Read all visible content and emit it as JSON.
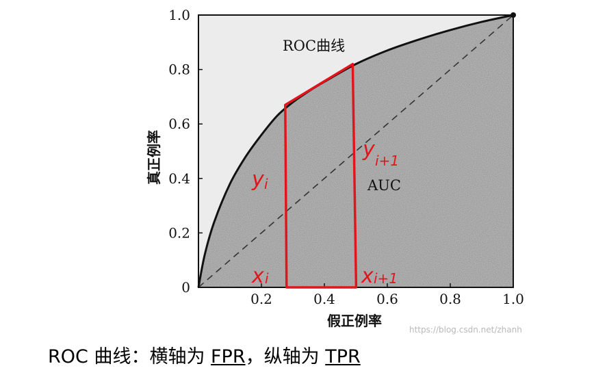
{
  "chart_data": {
    "type": "line",
    "xlabel": "假正例率",
    "ylabel": "真正例率",
    "xlim": [
      0,
      1
    ],
    "ylim": [
      0,
      1
    ],
    "x_ticks": [
      "0.2",
      "0.4",
      "0.6",
      "0.8",
      "1.0"
    ],
    "y_ticks": [
      "0",
      "0.2",
      "0.4",
      "0.6",
      "0.8",
      "1.0"
    ],
    "series": [
      {
        "name": "ROC曲线",
        "x": [
          0,
          0.02,
          0.05,
          0.1,
          0.15,
          0.2,
          0.25,
          0.3,
          0.35,
          0.4,
          0.5,
          0.6,
          0.7,
          0.8,
          0.9,
          1.0
        ],
        "y": [
          0,
          0.12,
          0.24,
          0.38,
          0.48,
          0.56,
          0.63,
          0.68,
          0.72,
          0.755,
          0.82,
          0.87,
          0.91,
          0.945,
          0.975,
          1.0
        ]
      }
    ],
    "diagonal": {
      "x": [
        0,
        1
      ],
      "y": [
        0,
        1
      ]
    },
    "annotations": {
      "curve_label": "ROC曲线",
      "area_label": "AUC"
    },
    "highlight_trapezoid": {
      "x_i": 0.28,
      "x_i1": 0.49,
      "y_i": 0.67,
      "y_i1": 0.82
    },
    "handwritten": {
      "yi": "y",
      "yi_sub": "i",
      "yi1": "y",
      "yi1_sub": "i+1",
      "xi": "x",
      "xi_sub": "i",
      "xi1": "x",
      "xi1_sub": "i+1"
    },
    "colors": {
      "area": "#8d8d8d",
      "above": "#ececec",
      "curve": "#111111",
      "trapezoid": "#e0161c"
    }
  },
  "watermark": "https://blog.csdn.net/zhanh",
  "caption": {
    "prefix": "ROC 曲线：横轴为 ",
    "fpr": "FPR",
    "mid": "，纵轴为 ",
    "tpr": "TPR"
  }
}
